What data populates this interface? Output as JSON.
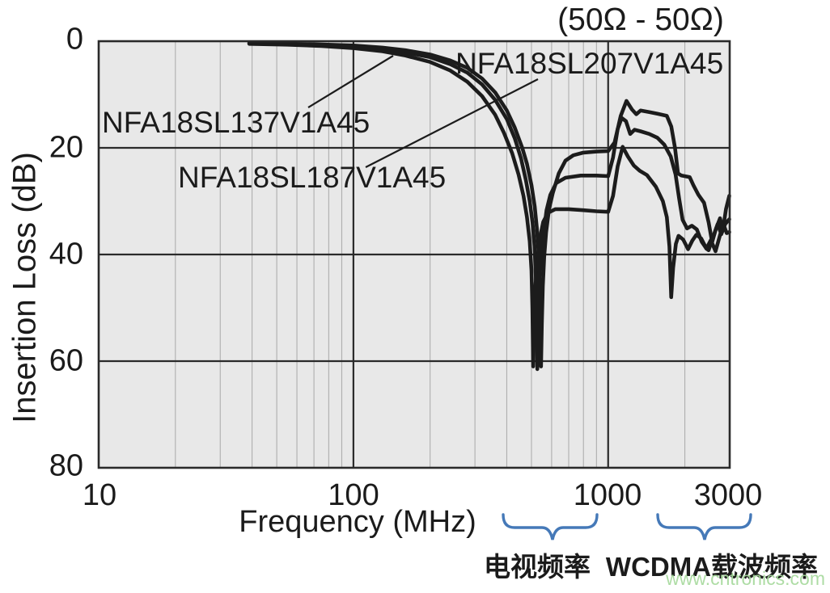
{
  "page": {
    "watermark": "www.cntronics.com"
  },
  "chart_data": {
    "type": "line",
    "title": "(50Ω - 50Ω)",
    "xlabel": "Frequency (MHz)",
    "ylabel": "Insertion Loss (dB)",
    "x_scale": "log",
    "xlim": [
      10,
      3000
    ],
    "ylim": [
      0,
      80
    ],
    "y_axis_inverted": true,
    "x_tick_labels": [
      "10",
      "100",
      "1000",
      "3000"
    ],
    "y_tick_labels": [
      "0",
      "20",
      "40",
      "60",
      "80"
    ],
    "x_major_gridlines": [
      100,
      1000
    ],
    "x_minor_gridlines": [
      20,
      30,
      40,
      50,
      60,
      70,
      80,
      90,
      200,
      300,
      400,
      500,
      600,
      700,
      800,
      900,
      2000
    ],
    "y_major_gridlines": [
      20,
      40,
      60
    ],
    "colors": {
      "curve": "#1c1c1c",
      "plot_bg": "#e8e8e8",
      "grid_minor": "#aeaeae",
      "grid_major": "#2a2a2a",
      "border": "#2a2a2a",
      "brace": "#4579b8",
      "watermark": "#a5d99b"
    },
    "series": [
      {
        "name": "NFA18SL207V1A45",
        "points": [
          [
            39,
            0.5
          ],
          [
            55,
            0.65
          ],
          [
            75,
            0.9
          ],
          [
            100,
            1.3
          ],
          [
            130,
            1.9
          ],
          [
            160,
            2.7
          ],
          [
            200,
            3.9
          ],
          [
            240,
            5.5
          ],
          [
            280,
            7.6
          ],
          [
            320,
            10.3
          ],
          [
            360,
            13.8
          ],
          [
            390,
            17.2
          ],
          [
            420,
            21
          ],
          [
            445,
            25
          ],
          [
            465,
            29
          ],
          [
            480,
            33
          ],
          [
            492,
            37.5
          ],
          [
            500,
            43
          ],
          [
            504,
            50
          ],
          [
            508,
            61
          ],
          [
            513,
            52
          ],
          [
            519,
            45.5
          ],
          [
            528,
            40.7
          ],
          [
            540,
            36.8
          ],
          [
            556,
            33.9
          ],
          [
            580,
            32.2
          ],
          [
            620,
            31.5
          ],
          [
            700,
            31.5
          ],
          [
            800,
            31.7
          ],
          [
            900,
            31.9
          ],
          [
            1000,
            32
          ],
          [
            1045,
            29
          ],
          [
            1090,
            23.5
          ],
          [
            1140,
            19.8
          ],
          [
            1195,
            21.6
          ],
          [
            1260,
            23.3
          ],
          [
            1330,
            24.3
          ],
          [
            1420,
            25.1
          ],
          [
            1540,
            27.3
          ],
          [
            1640,
            30
          ],
          [
            1700,
            33
          ],
          [
            1740,
            38.5
          ],
          [
            1768,
            48
          ],
          [
            1800,
            42.5
          ],
          [
            1845,
            38
          ],
          [
            1890,
            36.5
          ],
          [
            1970,
            37.2
          ],
          [
            2060,
            39
          ],
          [
            2140,
            37.4
          ],
          [
            2220,
            36.3
          ],
          [
            2320,
            37
          ],
          [
            2430,
            38.9
          ],
          [
            2480,
            39.2
          ],
          [
            2570,
            37
          ],
          [
            2690,
            34.3
          ],
          [
            2780,
            36.2
          ],
          [
            2880,
            34.3
          ],
          [
            2990,
            33.4
          ]
        ]
      },
      {
        "name": "NFA18SL187V1A45",
        "points": [
          [
            39,
            0.4
          ],
          [
            55,
            0.55
          ],
          [
            75,
            0.75
          ],
          [
            100,
            1
          ],
          [
            130,
            1.5
          ],
          [
            160,
            2.1
          ],
          [
            200,
            3
          ],
          [
            240,
            4.3
          ],
          [
            280,
            5.9
          ],
          [
            320,
            8.1
          ],
          [
            360,
            11
          ],
          [
            400,
            14.6
          ],
          [
            430,
            18.2
          ],
          [
            455,
            22
          ],
          [
            475,
            26
          ],
          [
            492,
            30
          ],
          [
            505,
            34
          ],
          [
            514,
            38.5
          ],
          [
            520,
            44
          ],
          [
            524,
            52
          ],
          [
            527,
            61.5
          ],
          [
            531,
            52
          ],
          [
            537,
            45
          ],
          [
            546,
            40
          ],
          [
            558,
            35.9
          ],
          [
            573,
            31.7
          ],
          [
            593,
            28.8
          ],
          [
            625,
            26.6
          ],
          [
            680,
            25.6
          ],
          [
            780,
            25.2
          ],
          [
            900,
            25.2
          ],
          [
            1000,
            25.3
          ],
          [
            1045,
            21.8
          ],
          [
            1090,
            16.5
          ],
          [
            1130,
            14.4
          ],
          [
            1175,
            15
          ],
          [
            1220,
            17.4
          ],
          [
            1270,
            16.6
          ],
          [
            1340,
            16.9
          ],
          [
            1450,
            17.4
          ],
          [
            1560,
            18.1
          ],
          [
            1660,
            19.4
          ],
          [
            1760,
            21.6
          ],
          [
            1840,
            25
          ],
          [
            1900,
            29.5
          ],
          [
            1960,
            33.5
          ],
          [
            2040,
            35.1
          ],
          [
            2130,
            34.6
          ],
          [
            2230,
            35.3
          ],
          [
            2330,
            37.6
          ],
          [
            2430,
            38.9
          ],
          [
            2530,
            37.3
          ],
          [
            2640,
            39.4
          ],
          [
            2740,
            36.6
          ],
          [
            2830,
            34.2
          ],
          [
            2920,
            36
          ],
          [
            2990,
            35.8
          ]
        ]
      },
      {
        "name": "NFA18SL137V1A45",
        "points": [
          [
            39,
            0.3
          ],
          [
            55,
            0.45
          ],
          [
            75,
            0.6
          ],
          [
            100,
            0.8
          ],
          [
            130,
            1.2
          ],
          [
            160,
            1.7
          ],
          [
            200,
            2.5
          ],
          [
            240,
            3.6
          ],
          [
            280,
            5
          ],
          [
            320,
            7
          ],
          [
            360,
            9.6
          ],
          [
            400,
            13
          ],
          [
            430,
            16.2
          ],
          [
            460,
            20
          ],
          [
            480,
            23
          ],
          [
            500,
            27
          ],
          [
            515,
            31
          ],
          [
            525,
            35
          ],
          [
            533,
            39.5
          ],
          [
            539,
            46
          ],
          [
            543,
            54
          ],
          [
            545,
            61
          ],
          [
            549,
            53
          ],
          [
            554,
            46
          ],
          [
            561,
            40.5
          ],
          [
            571,
            35.8
          ],
          [
            586,
            31.5
          ],
          [
            606,
            28.5
          ],
          [
            640,
            24.8
          ],
          [
            680,
            22.4
          ],
          [
            730,
            21.4
          ],
          [
            800,
            20.9
          ],
          [
            900,
            20.7
          ],
          [
            1000,
            20.6
          ],
          [
            1060,
            19
          ],
          [
            1120,
            14
          ],
          [
            1180,
            11.2
          ],
          [
            1240,
            12.8
          ],
          [
            1290,
            13.7
          ],
          [
            1340,
            13
          ],
          [
            1450,
            13.3
          ],
          [
            1560,
            13.6
          ],
          [
            1700,
            14
          ],
          [
            1770,
            16
          ],
          [
            1830,
            20
          ],
          [
            1880,
            24.8
          ],
          [
            1940,
            25.2
          ],
          [
            2090,
            25.5
          ],
          [
            2160,
            27
          ],
          [
            2260,
            28.8
          ],
          [
            2380,
            30.3
          ],
          [
            2480,
            34
          ],
          [
            2560,
            37.7
          ],
          [
            2650,
            35.2
          ],
          [
            2750,
            33.2
          ],
          [
            2820,
            35.5
          ],
          [
            2900,
            31.5
          ],
          [
            2990,
            29
          ]
        ]
      }
    ],
    "band_annotations": [
      {
        "label": "电视频率",
        "approx_range_mhz": [
          390,
          900
        ]
      },
      {
        "label": "WCDMA载波频率",
        "approx_range_mhz": [
          1560,
          3600
        ]
      }
    ]
  }
}
